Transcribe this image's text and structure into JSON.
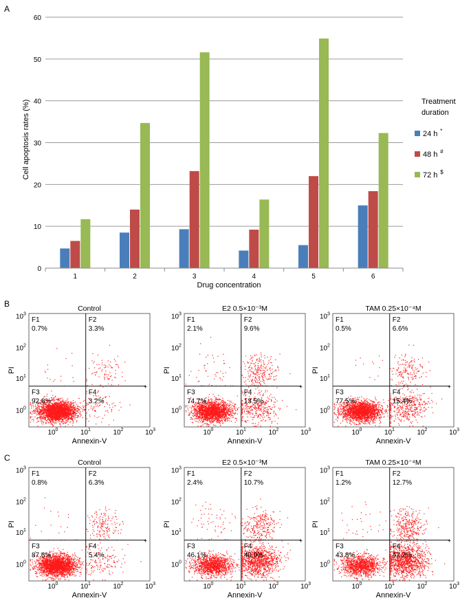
{
  "chart_data": [
    {
      "panel": "A",
      "type": "bar",
      "categories": [
        "1",
        "2",
        "3",
        "4",
        "5",
        "6"
      ],
      "series": [
        {
          "name": "24 h",
          "superscript": "*",
          "color": "#4a7ebb",
          "values": [
            4.7,
            8.5,
            9.3,
            4.2,
            5.5,
            15.0
          ]
        },
        {
          "name": "48 h",
          "superscript": "#",
          "color": "#be4b48",
          "values": [
            6.5,
            14.0,
            23.2,
            9.2,
            22.0,
            18.4
          ]
        },
        {
          "name": "72 h",
          "superscript": "$",
          "color": "#98b954",
          "values": [
            11.7,
            34.7,
            51.6,
            16.4,
            54.9,
            32.3
          ]
        }
      ],
      "xlabel": "Drug concentration",
      "ylabel": "Cell apoptosis rates (%)",
      "ylim": [
        0,
        60
      ],
      "yticks": [
        "0",
        "10",
        "20",
        "30",
        "40",
        "50",
        "60"
      ],
      "legend_title": [
        "Treatment",
        "duration"
      ],
      "legend_position": "right",
      "grid": true
    },
    {
      "panel": "B",
      "type": "scatter",
      "plots": [
        {
          "title": "Control",
          "xlabel": "Annexin-V",
          "ylabel": "PI",
          "quadrants": {
            "F1": "0.7%",
            "F2": "3.3%",
            "F3": "92.8%",
            "F4": "3.2%"
          }
        },
        {
          "title": "E2  0.5×10⁻³M",
          "xlabel": "Annexin-V",
          "ylabel": "PI",
          "quadrants": {
            "F1": "2.1%",
            "F2": "9.6%",
            "F3": "74.7%",
            "F4": "13.5%"
          }
        },
        {
          "title": "TAM 0.25×10⁻⁴M",
          "xlabel": "Annexin-V",
          "ylabel": "PI",
          "quadrants": {
            "F1": "0.5%",
            "F2": "6.6%",
            "F3": "77.5%",
            "F4": "15.4%"
          }
        }
      ]
    },
    {
      "panel": "C",
      "type": "scatter",
      "plots": [
        {
          "title": "Control",
          "xlabel": "Annexin-V",
          "ylabel": "PI",
          "quadrants": {
            "F1": "0.8%",
            "F2": "6.3%",
            "F3": "87.6%",
            "F4": "5.4%"
          }
        },
        {
          "title": "E2  0.5×10⁻³M",
          "xlabel": "Annexin-V",
          "ylabel": "PI",
          "quadrants": {
            "F1": "2.4%",
            "F2": "10.7%",
            "F3": "46.1%",
            "F4": "40.9%"
          }
        },
        {
          "title": "TAM 0.25×10⁻⁴M",
          "xlabel": "Annexin-V",
          "ylabel": "PI",
          "quadrants": {
            "F1": "1.2%",
            "F2": "12.7%",
            "F3": "43.8%",
            "F4": "42.2%"
          }
        }
      ]
    }
  ],
  "flow_axis": {
    "ticks": [
      {
        "base": "10",
        "exp": "0"
      },
      {
        "base": "10",
        "exp": "1"
      },
      {
        "base": "10",
        "exp": "2"
      },
      {
        "base": "10",
        "exp": "3"
      }
    ],
    "quadrant_names": [
      "F1",
      "F2",
      "F3",
      "F4"
    ],
    "dot_color": "#ff1a1a"
  }
}
